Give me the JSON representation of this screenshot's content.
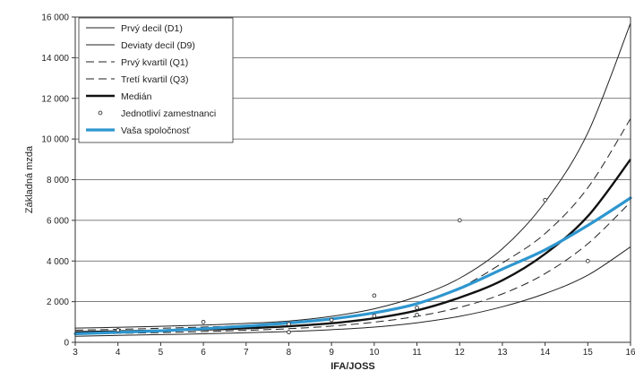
{
  "chart_data": {
    "type": "line",
    "xlabel": "IFA/JOSS",
    "ylabel": "Základná mzda",
    "xlim": [
      3,
      16
    ],
    "ylim": [
      0,
      16000
    ],
    "x_ticks": [
      "3",
      "4",
      "5",
      "6",
      "7",
      "8",
      "9",
      "10",
      "11",
      "12",
      "13",
      "14",
      "15",
      "16"
    ],
    "y_ticks": [
      "0",
      "2 000",
      "4 000",
      "6 000",
      "8 000",
      "10 000",
      "12 000",
      "14 000",
      "16 000"
    ],
    "y_tick_values": [
      0,
      2000,
      4000,
      6000,
      8000,
      10000,
      12000,
      14000,
      16000
    ],
    "grid": "horizontal",
    "legend_position": "top-left",
    "x": [
      3,
      4,
      5,
      6,
      7,
      8,
      9,
      10,
      11,
      12,
      13,
      14,
      15,
      16
    ],
    "series": [
      {
        "name": "Prvý decil (D1)",
        "color": "#222222",
        "style": "thin",
        "values": [
          300,
          340,
          380,
          420,
          470,
          530,
          620,
          750,
          960,
          1280,
          1750,
          2400,
          3300,
          4700
        ]
      },
      {
        "name": "Deviaty decil (D9)",
        "color": "#222222",
        "style": "thin",
        "values": [
          700,
          740,
          790,
          850,
          930,
          1050,
          1280,
          1650,
          2250,
          3150,
          4600,
          6900,
          10300,
          15700
        ]
      },
      {
        "name": "Prvý kvartil (Q1)",
        "color": "#222222",
        "style": "dashed",
        "values": [
          400,
          440,
          480,
          530,
          590,
          670,
          800,
          990,
          1280,
          1720,
          2380,
          3380,
          4850,
          6900
        ]
      },
      {
        "name": "Tretí kvartil (Q3)",
        "color": "#222222",
        "style": "dashed",
        "values": [
          600,
          640,
          690,
          750,
          830,
          940,
          1130,
          1440,
          1920,
          2680,
          3900,
          5350,
          7600,
          11000
        ]
      },
      {
        "name": "Medián",
        "color": "#111111",
        "style": "thick",
        "values": [
          500,
          540,
          580,
          630,
          690,
          790,
          940,
          1180,
          1570,
          2200,
          3050,
          4350,
          6200,
          9000
        ]
      }
    ],
    "company_curve": {
      "name": "Vaša spoločnosť",
      "color": "#2e96cf",
      "values": [
        420,
        490,
        570,
        670,
        800,
        950,
        1150,
        1450,
        1900,
        2650,
        3600,
        4550,
        5750,
        7100
      ]
    },
    "scatter": {
      "name": "Jednotliví zamestnanci",
      "points": [
        {
          "x": 4,
          "y": 600
        },
        {
          "x": 6,
          "y": 1000
        },
        {
          "x": 8,
          "y": 900
        },
        {
          "x": 8,
          "y": 500
        },
        {
          "x": 9,
          "y": 1100
        },
        {
          "x": 10,
          "y": 2300
        },
        {
          "x": 10,
          "y": 1300
        },
        {
          "x": 11,
          "y": 1700
        },
        {
          "x": 11,
          "y": 1350
        },
        {
          "x": 12,
          "y": 6000
        },
        {
          "x": 14,
          "y": 7000
        },
        {
          "x": 15,
          "y": 4000
        }
      ]
    }
  }
}
